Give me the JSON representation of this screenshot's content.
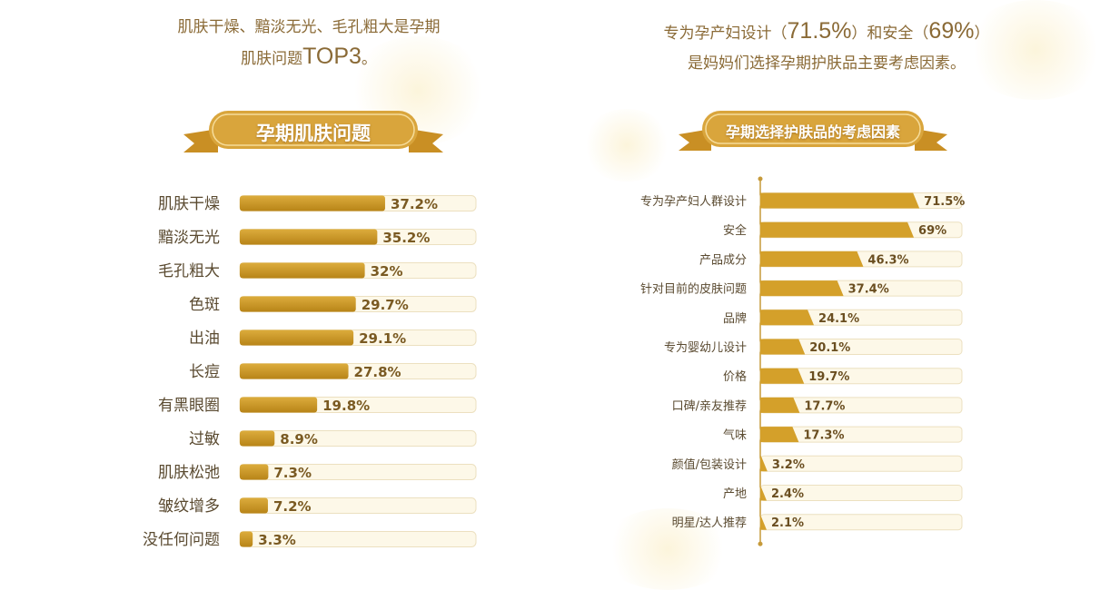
{
  "colors": {
    "bar": "#d4a02a",
    "bar_dark": "#b88418",
    "track": "#fdf8e8",
    "track_border": "#ece0c0",
    "headline": "#8a6a36",
    "ribbon": "#d9a53c"
  },
  "left": {
    "headline": {
      "line1": "肌肤干燥、黯淡无光、毛孔粗大是孕期",
      "line2_pre": "肌肤问题",
      "line2_big": "TOP3",
      "line2_post": "。"
    },
    "ribbon_title": "孕期肌肤问题"
  },
  "right": {
    "headline": {
      "p1": "专为孕产妇设计（",
      "n1": "71.5%",
      "p2": "）和安全（",
      "n2": "69%",
      "p3": "）",
      "line2": "是妈妈们选择孕期护肤品主要考虑因素。"
    },
    "ribbon_title": "孕期选择护肤品的考虑因素"
  },
  "chart_data": [
    {
      "type": "bar",
      "orientation": "horizontal",
      "title": "孕期肌肤问题",
      "categories": [
        "肌肤干燥",
        "黯淡无光",
        "毛孔粗大",
        "色斑",
        "出油",
        "长痘",
        "有黑眼圈",
        "过敏",
        "肌肤松弛",
        "皱纹增多",
        "没任何问题"
      ],
      "values": [
        37.2,
        35.2,
        32,
        29.7,
        29.1,
        27.8,
        19.8,
        8.9,
        7.3,
        7.2,
        3.3
      ],
      "labels": [
        "37.2%",
        "35.2%",
        "32%",
        "29.7%",
        "29.1%",
        "27.8%",
        "19.8%",
        "8.9%",
        "7.3%",
        "7.2%",
        "3.3%"
      ],
      "unit": "%"
    },
    {
      "type": "bar",
      "orientation": "horizontal",
      "title": "孕期选择护肤品的考虑因素",
      "categories": [
        "专为孕产妇人群设计",
        "安全",
        "产品成分",
        "针对目前的皮肤问题",
        "品牌",
        "专为婴幼儿设计",
        "价格",
        "口碑/亲友推荐",
        "气味",
        "颜值/包装设计",
        "产地",
        "明星/达人推荐"
      ],
      "values": [
        71.5,
        69,
        46.3,
        37.4,
        24.1,
        20.1,
        19.7,
        17.7,
        17.3,
        3.2,
        2.4,
        2.1
      ],
      "labels": [
        "71.5%",
        "69%",
        "46.3%",
        "37.4%",
        "24.1%",
        "20.1%",
        "19.7%",
        "17.7%",
        "17.3%",
        "3.2%",
        "2.4%",
        "2.1%"
      ],
      "unit": "%"
    }
  ]
}
